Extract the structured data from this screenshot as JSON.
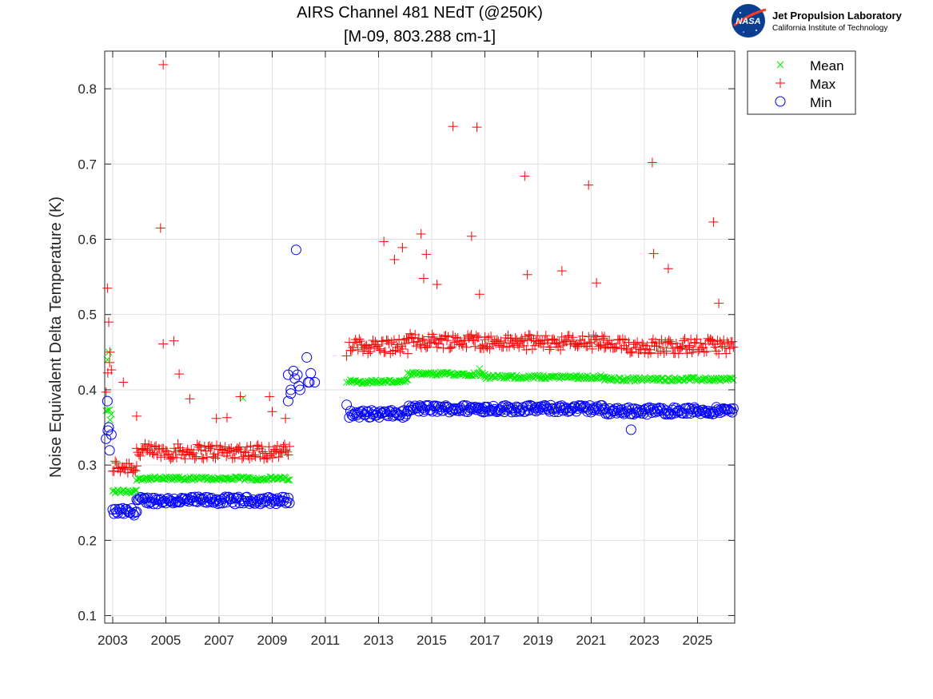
{
  "chart_data": {
    "type": "scatter",
    "title": "AIRS Channel 481 NEdT (@250K)",
    "subtitle": "[M-09, 803.288 cm-1]",
    "xlabel": "",
    "ylabel": "Noise Equivalent Delta Temperature (K)",
    "xlim": [
      2002.7,
      2026.4
    ],
    "ylim": [
      0.09,
      0.85
    ],
    "xticks": [
      2003,
      2005,
      2007,
      2009,
      2011,
      2013,
      2015,
      2017,
      2019,
      2021,
      2023,
      2025
    ],
    "xtick_labels": [
      "2003",
      "2005",
      "2007",
      "2009",
      "2011",
      "2013",
      "2015",
      "2017",
      "2019",
      "2021",
      "2023",
      "2025"
    ],
    "yticks": [
      0.1,
      0.2,
      0.3,
      0.4,
      0.5,
      0.6,
      0.7,
      0.8
    ],
    "ytick_labels": [
      "0.1",
      "0.2",
      "0.3",
      "0.4",
      "0.5",
      "0.6",
      "0.7",
      "0.8"
    ],
    "grid": true,
    "legend_position": "outside-top-right",
    "segments": [
      {
        "from": 2002.75,
        "to": 2002.95,
        "mean": 0.37,
        "max": 0.4,
        "min": 0.33,
        "spread": 0.02
      },
      {
        "from": 2003.0,
        "to": 2003.9,
        "mean": 0.265,
        "max": 0.295,
        "min": 0.238,
        "spread": 0.006
      },
      {
        "from": 2003.9,
        "to": 2009.65,
        "mean": 0.282,
        "max": 0.315,
        "min": 0.253,
        "spread": 0.006
      },
      {
        "from": 2011.9,
        "to": 2014.1,
        "mean": 0.411,
        "max": 0.455,
        "min": 0.368,
        "spread": 0.006
      },
      {
        "from": 2014.1,
        "to": 2017.0,
        "mean": 0.421,
        "max": 0.462,
        "min": 0.375,
        "spread": 0.006
      },
      {
        "from": 2017.0,
        "to": 2021.5,
        "mean": 0.417,
        "max": 0.46,
        "min": 0.375,
        "spread": 0.006
      },
      {
        "from": 2021.5,
        "to": 2026.35,
        "mean": 0.414,
        "max": 0.455,
        "min": 0.372,
        "spread": 0.006
      }
    ],
    "series": [
      {
        "name": "Mean",
        "marker": "x",
        "color": "#00ee00",
        "x": [
          2002.8,
          2002.85,
          2002.9,
          2007.9,
          2011.8,
          2016.8
        ],
        "y": [
          0.44,
          0.45,
          0.36,
          0.389,
          0.41,
          0.428
        ]
      },
      {
        "name": "Max",
        "marker": "+",
        "color": "#ff0000",
        "x": [
          2002.8,
          2002.85,
          2002.9,
          2003.4,
          2003.9,
          2004.8,
          2004.9,
          2004.9,
          2005.3,
          2005.5,
          2005.9,
          2006.9,
          2007.3,
          2007.8,
          2008.9,
          2009.0,
          2009.5,
          2011.8,
          2013.2,
          2013.6,
          2013.9,
          2014.6,
          2014.7,
          2014.8,
          2015.2,
          2015.8,
          2016.5,
          2016.7,
          2016.8,
          2018.5,
          2018.6,
          2019.9,
          2020.9,
          2021.2,
          2023.3,
          2023.35,
          2023.9,
          2025.6,
          2025.8
        ],
        "y": [
          0.535,
          0.49,
          0.45,
          0.41,
          0.365,
          0.615,
          0.832,
          0.461,
          0.465,
          0.421,
          0.388,
          0.362,
          0.363,
          0.391,
          0.391,
          0.371,
          0.362,
          0.445,
          0.597,
          0.573,
          0.589,
          0.607,
          0.548,
          0.58,
          0.54,
          0.75,
          0.604,
          0.749,
          0.527,
          0.684,
          0.553,
          0.558,
          0.672,
          0.542,
          0.702,
          0.581,
          0.561,
          0.623,
          0.515
        ]
      },
      {
        "name": "Min",
        "marker": "o",
        "color": "#0000ff",
        "x": [
          2002.8,
          2002.85,
          2009.6,
          2009.6,
          2009.7,
          2009.7,
          2009.8,
          2009.85,
          2009.9,
          2009.95,
          2010.0,
          2010.05,
          2010.3,
          2010.35,
          2010.4,
          2010.45,
          2010.6,
          2011.8,
          2022.5
        ],
        "y": [
          0.385,
          0.35,
          0.42,
          0.385,
          0.4,
          0.395,
          0.425,
          0.415,
          0.586,
          0.42,
          0.405,
          0.4,
          0.443,
          0.41,
          0.41,
          0.422,
          0.41,
          0.38,
          0.347
        ]
      }
    ]
  },
  "logo": {
    "nasa_text": "NASA",
    "title": "Jet Propulsion Laboratory",
    "subtitle": "California Institute of Technology"
  },
  "colors": {
    "mean": "#00ee00",
    "max": "#ff0000",
    "min": "#0000ff"
  }
}
